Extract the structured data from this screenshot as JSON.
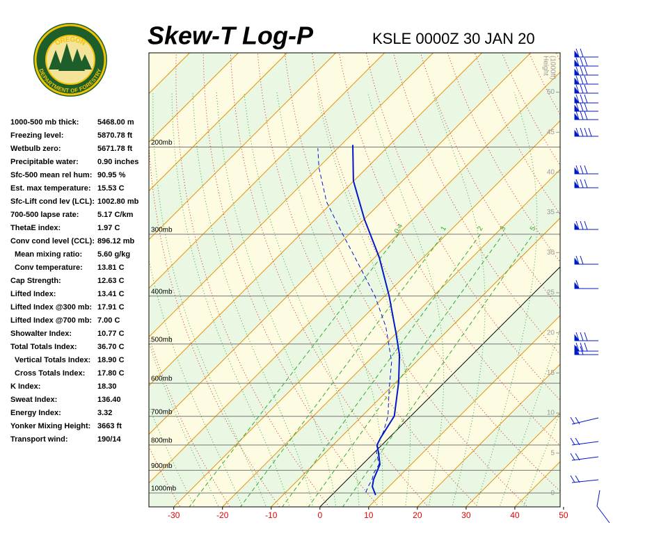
{
  "logo": {
    "top": "OREGON",
    "bottom": "DEPARTMENT OF FORESTRY"
  },
  "stats": [
    {
      "label": "1000-500 mb thick:",
      "value": "5468.00 m"
    },
    {
      "label": "Freezing level:",
      "value": "5870.78 ft"
    },
    {
      "label": "Wetbulb zero:",
      "value": "5671.78 ft"
    },
    {
      "label": "Precipitable water:",
      "value": "0.90 inches"
    },
    {
      "label": "Sfc-500 mean rel hum:",
      "value": "90.95 %"
    },
    {
      "label": "Est. max temperature:",
      "value": "15.53 C"
    },
    {
      "label": "Sfc-Lift cond lev (LCL):",
      "value": "1002.80 mb"
    },
    {
      "label": "700-500 lapse rate:",
      "value": "5.17 C/km"
    },
    {
      "label": "ThetaE index:",
      "value": "1.97 C"
    },
    {
      "label": "Conv cond level (CCL):",
      "value": "896.12 mb"
    },
    {
      "label": "Mean mixing ratio:",
      "value": "5.60 g/kg"
    },
    {
      "label": "Conv temperature:",
      "value": "13.81 C"
    },
    {
      "label": "Cap Strength:",
      "value": "12.63 C"
    },
    {
      "label": "Lifted Index:",
      "value": "13.41 C"
    },
    {
      "label": "Lifted Index @300 mb:",
      "value": "17.91 C"
    },
    {
      "label": "Lifted Index @700 mb:",
      "value": "7.00 C"
    },
    {
      "label": "Showalter Index:",
      "value": "10.77 C"
    },
    {
      "label": "Total Totals Index:",
      "value": "36.70 C"
    },
    {
      "label": "Vertical Totals Index:",
      "value": "18.90 C"
    },
    {
      "label": "Cross Totals Index:",
      "value": "17.80 C"
    },
    {
      "label": "K Index:",
      "value": "18.30"
    },
    {
      "label": "Sweat Index:",
      "value": "136.40"
    },
    {
      "label": "Energy Index:",
      "value": "3.32"
    },
    {
      "label": "Yonker Mixing Height:",
      "value": "3663 ft"
    },
    {
      "label": "Transport wind:",
      "value": "190/14"
    }
  ],
  "chart_data": {
    "type": "skewt",
    "title": "Skew-T Log-P",
    "subtitle": "KSLE 0000Z 30 JAN 20",
    "xlim": [
      -35.1,
      49.3
    ],
    "xticks": [
      -30,
      -20,
      -10,
      0,
      10,
      20,
      30,
      40,
      50
    ],
    "ylim": [
      1067,
      129
    ],
    "log_y": true,
    "yticks": [
      {
        "value": 1000,
        "label": "1000mb"
      },
      {
        "value": 900,
        "label": "900mb"
      },
      {
        "value": 800,
        "label": "800mb"
      },
      {
        "value": 700,
        "label": "700mb"
      },
      {
        "value": 600,
        "label": "600mb"
      },
      {
        "value": 500,
        "label": "500mb"
      },
      {
        "value": 400,
        "label": "400mb"
      },
      {
        "value": 300,
        "label": "300mb"
      },
      {
        "value": 200,
        "label": "200mb"
      }
    ],
    "y2label": [
      "Height",
      "(1000ft)"
    ],
    "y2lim": [
      -1.7,
      54.9
    ],
    "y2ticks": [
      0,
      5,
      10,
      15,
      20,
      25,
      30,
      35,
      40,
      45,
      50
    ],
    "mixing_ratio_lines": [
      0.4,
      1,
      2,
      3,
      5
    ],
    "series": [
      {
        "color": "#0018c8",
        "dashed": false,
        "pressure": [
          1010,
          971,
          940,
          911,
          876,
          826,
          800,
          775,
          699,
          598,
          526,
          477,
          400,
          334,
          280,
          234,
          198
        ],
        "values": [
          9.0,
          6.6,
          5.4,
          4.6,
          3.6,
          0.7,
          -1.0,
          -1.7,
          -3.4,
          -9.4,
          -14.9,
          -19.9,
          -29.1,
          -39.1,
          -49.9,
          -60.1,
          -67.6
        ]
      },
      {
        "color": "#0018c8",
        "dashed": true,
        "pressure": [
          997,
          965,
          940,
          911,
          876,
          826,
          800,
          752,
          699,
          618,
          543,
          462,
          400,
          334,
          294,
          258,
          220,
          201
        ],
        "values": [
          6.4,
          5.6,
          5.1,
          4.1,
          3.4,
          0.3,
          -1.0,
          -2.4,
          -4.7,
          -9.9,
          -15.1,
          -23.4,
          -32.0,
          -44.1,
          -52.7,
          -61.3,
          -69.9,
          -74.1
        ]
      }
    ]
  }
}
